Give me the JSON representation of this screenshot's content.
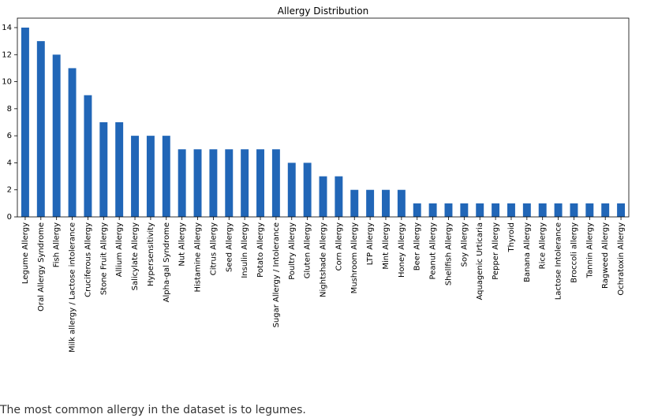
{
  "chart_data": {
    "type": "bar",
    "title": "Allergy Distribution",
    "xlabel": "",
    "ylabel": "",
    "ylim": [
      0,
      14.7
    ],
    "yticks": [
      0,
      2,
      4,
      6,
      8,
      10,
      12,
      14
    ],
    "grid": false,
    "bar_color": "#2166b7",
    "categories": [
      "Legume Allergy",
      "Oral Allergy Syndrome",
      "Fish Allergy",
      "Milk allergy / Lactose intolerance",
      "Cruciferous Allergy",
      "Stone Fruit Allergy",
      "Allium Allergy",
      "Salicylate Allergy",
      "Hypersensitivity",
      "Alpha-gal Syndrome",
      "Nut Allergy",
      "Histamine Allergy",
      "Citrus Allergy",
      "Seed Allergy",
      "Insulin Allergy",
      "Potato Allergy",
      "Sugar Allergy / Intolerance",
      "Poultry Allergy",
      "Gluten Allergy",
      "Nightshade Allergy",
      "Corn Allergy",
      "Mushroom Allergy",
      "LTP Allergy",
      "Mint Allergy",
      "Honey Allergy",
      "Beer Allergy",
      "Peanut Allergy",
      "Shellfish Allergy",
      "Soy Allergy",
      "Aquagenic Urticaria",
      "Pepper Allergy",
      "Thyroid",
      "Banana Allergy",
      "Rice Allergy",
      "Lactose Intolerance",
      "Broccoli allergy",
      "Tannin Allergy",
      "Ragweed Allergy",
      "Ochratoxin Allergy"
    ],
    "values": [
      14,
      13,
      12,
      11,
      9,
      7,
      7,
      6,
      6,
      6,
      5,
      5,
      5,
      5,
      5,
      5,
      5,
      4,
      4,
      3,
      3,
      2,
      2,
      2,
      2,
      1,
      1,
      1,
      1,
      1,
      1,
      1,
      1,
      1,
      1,
      1,
      1,
      1,
      1
    ]
  },
  "caption": "The most common allergy in the dataset is to legumes."
}
